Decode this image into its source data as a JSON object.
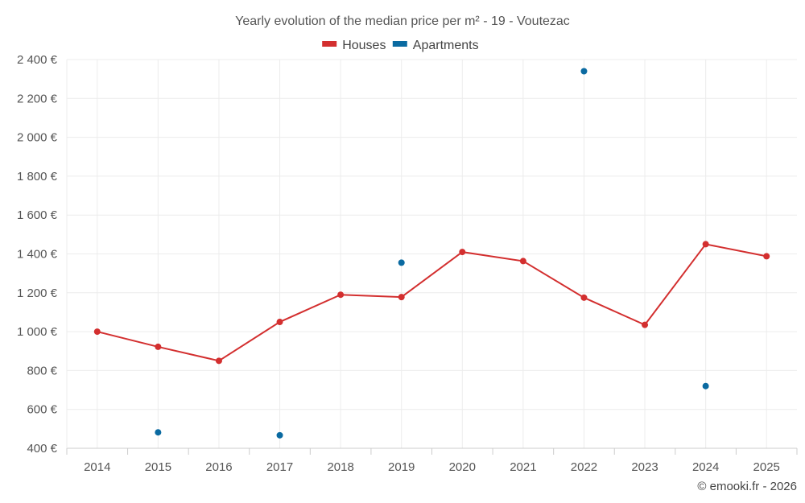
{
  "chart_data": {
    "type": "line",
    "title": "Yearly evolution of the median price per m² - 19 - Voutezac",
    "categories": [
      "2014",
      "2015",
      "2016",
      "2017",
      "2018",
      "2019",
      "2020",
      "2021",
      "2022",
      "2023",
      "2024",
      "2025"
    ],
    "ylim": [
      400,
      2400
    ],
    "yticks": [
      400,
      600,
      800,
      1000,
      1200,
      1400,
      1600,
      1800,
      2000,
      2200,
      2400
    ],
    "ytick_labels": [
      "400 €",
      "600 €",
      "800 €",
      "1 000 €",
      "1 200 €",
      "1 400 €",
      "1 600 €",
      "1 800 €",
      "2 000 €",
      "2 200 €",
      "2 400 €"
    ],
    "grid": true,
    "legend_position": "top-center",
    "series": [
      {
        "name": "Houses",
        "color": "#d32f2f",
        "mode": "line+markers",
        "values": [
          1000,
          922,
          850,
          1050,
          1190,
          1178,
          1410,
          1363,
          1175,
          1035,
          1450,
          1388
        ]
      },
      {
        "name": "Apartments",
        "color": "#0a6aa1",
        "mode": "markers",
        "values": [
          null,
          482,
          null,
          467,
          null,
          1355,
          null,
          null,
          2340,
          null,
          720,
          null
        ]
      }
    ]
  },
  "credit": "© emooki.fr - 2026"
}
